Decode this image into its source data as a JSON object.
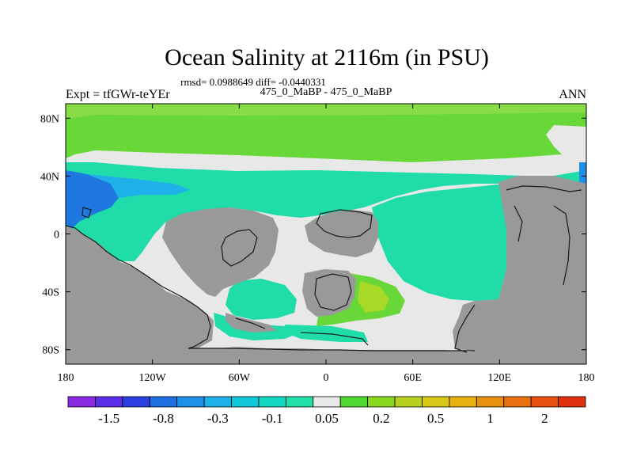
{
  "chart_data": {
    "type": "heatmap",
    "title": "Ocean Salinity at 2116m (in PSU)",
    "stats_line": "rmsd= 0.0988649 diff= -0.0440331",
    "subtitle": "475_0_MaBP - 475_0_MaBP",
    "left_label": "Expt = tfGWr-teYEr",
    "right_label": "ANN",
    "xlim": [
      -180,
      180
    ],
    "ylim": [
      -90,
      90
    ],
    "x_ticks": [
      {
        "value": -180,
        "label": "180"
      },
      {
        "value": -120,
        "label": "120W"
      },
      {
        "value": -60,
        "label": "60W"
      },
      {
        "value": 0,
        "label": "0"
      },
      {
        "value": 60,
        "label": "60E"
      },
      {
        "value": 120,
        "label": "120E"
      },
      {
        "value": 180,
        "label": "180"
      }
    ],
    "y_ticks": [
      {
        "value": 80,
        "label": "80N"
      },
      {
        "value": 40,
        "label": "40N"
      },
      {
        "value": 0,
        "label": "0"
      },
      {
        "value": -40,
        "label": "40S"
      },
      {
        "value": -80,
        "label": "80S"
      }
    ],
    "colorbar": {
      "colors": [
        "#8a2be2",
        "#5a2ee8",
        "#2c3fe0",
        "#1e6fe0",
        "#1e90e8",
        "#1eb0e8",
        "#10c8d8",
        "#10d8c0",
        "#20e0a8",
        "#e8e8e8",
        "#50d830",
        "#88d820",
        "#b8d020",
        "#d8c818",
        "#e8b010",
        "#e89010",
        "#e87010",
        "#e85010",
        "#e03010"
      ],
      "boundaries": [
        "",
        "-1.5",
        "",
        "-0.8",
        "",
        "-0.3",
        "",
        "-0.1",
        "",
        "0.05",
        "",
        "0.2",
        "",
        "0.5",
        "",
        "1",
        "",
        "2",
        ""
      ]
    },
    "regions": [
      {
        "name": "arctic-band",
        "value_class": 0.2,
        "color": "#68d838"
      },
      {
        "name": "north-tropical-band",
        "value_class": -0.1,
        "color": "#20dca8"
      },
      {
        "name": "north-pacific-low",
        "value_class": -0.8,
        "color": "#1e78e0"
      },
      {
        "name": "east-basin",
        "value_class": -0.1,
        "color": "#20dca8"
      },
      {
        "name": "southern-patch",
        "value_class": -0.1,
        "color": "#20dca8"
      },
      {
        "name": "southern-positive",
        "value_class": 0.2,
        "color": "#a8d828"
      },
      {
        "name": "neutral",
        "value_class": 0.05,
        "color": "#e8e8e8"
      },
      {
        "name": "land",
        "value_class": null,
        "color": "#999999"
      }
    ]
  }
}
